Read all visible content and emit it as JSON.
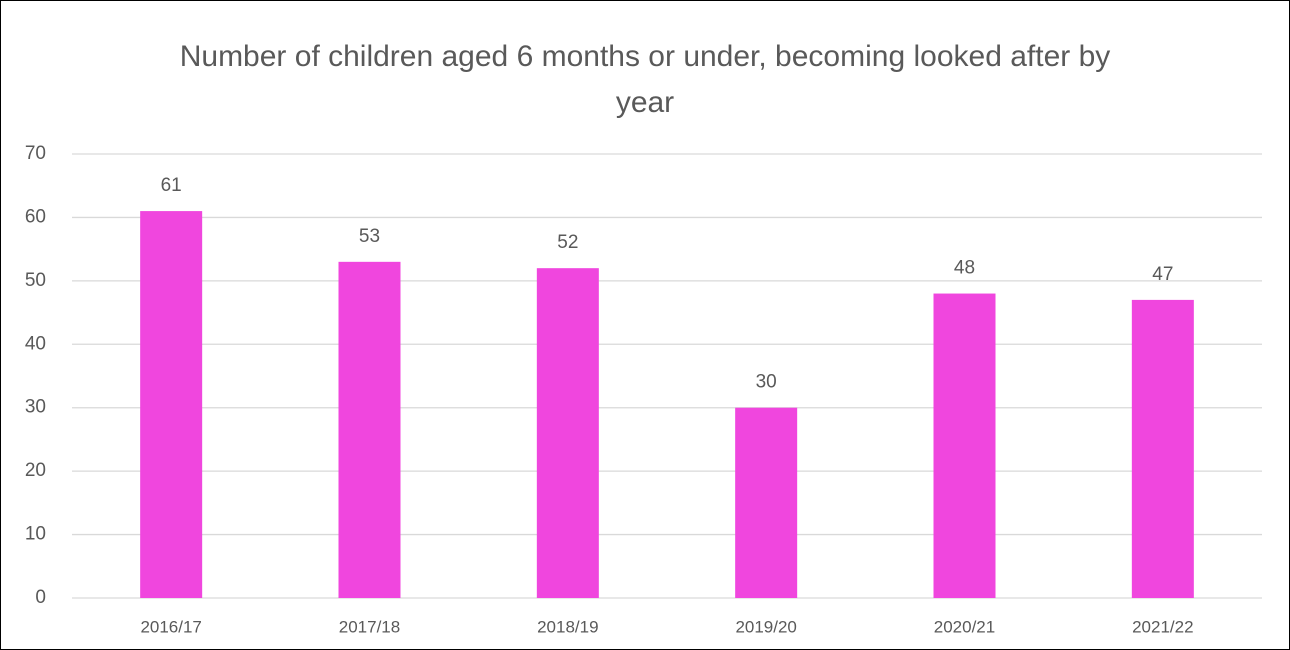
{
  "chart_data": {
    "type": "bar",
    "title": "Number of children aged 6 months or under, becoming looked after by year",
    "categories": [
      "2016/17",
      "2017/18",
      "2018/19",
      "2019/20",
      "2020/21",
      "2021/22"
    ],
    "values": [
      61,
      53,
      52,
      30,
      48,
      47
    ],
    "color": "#f046de",
    "ylim": [
      0,
      70
    ],
    "yticks": [
      0,
      10,
      20,
      30,
      40,
      50,
      60,
      70
    ],
    "grid": true
  }
}
